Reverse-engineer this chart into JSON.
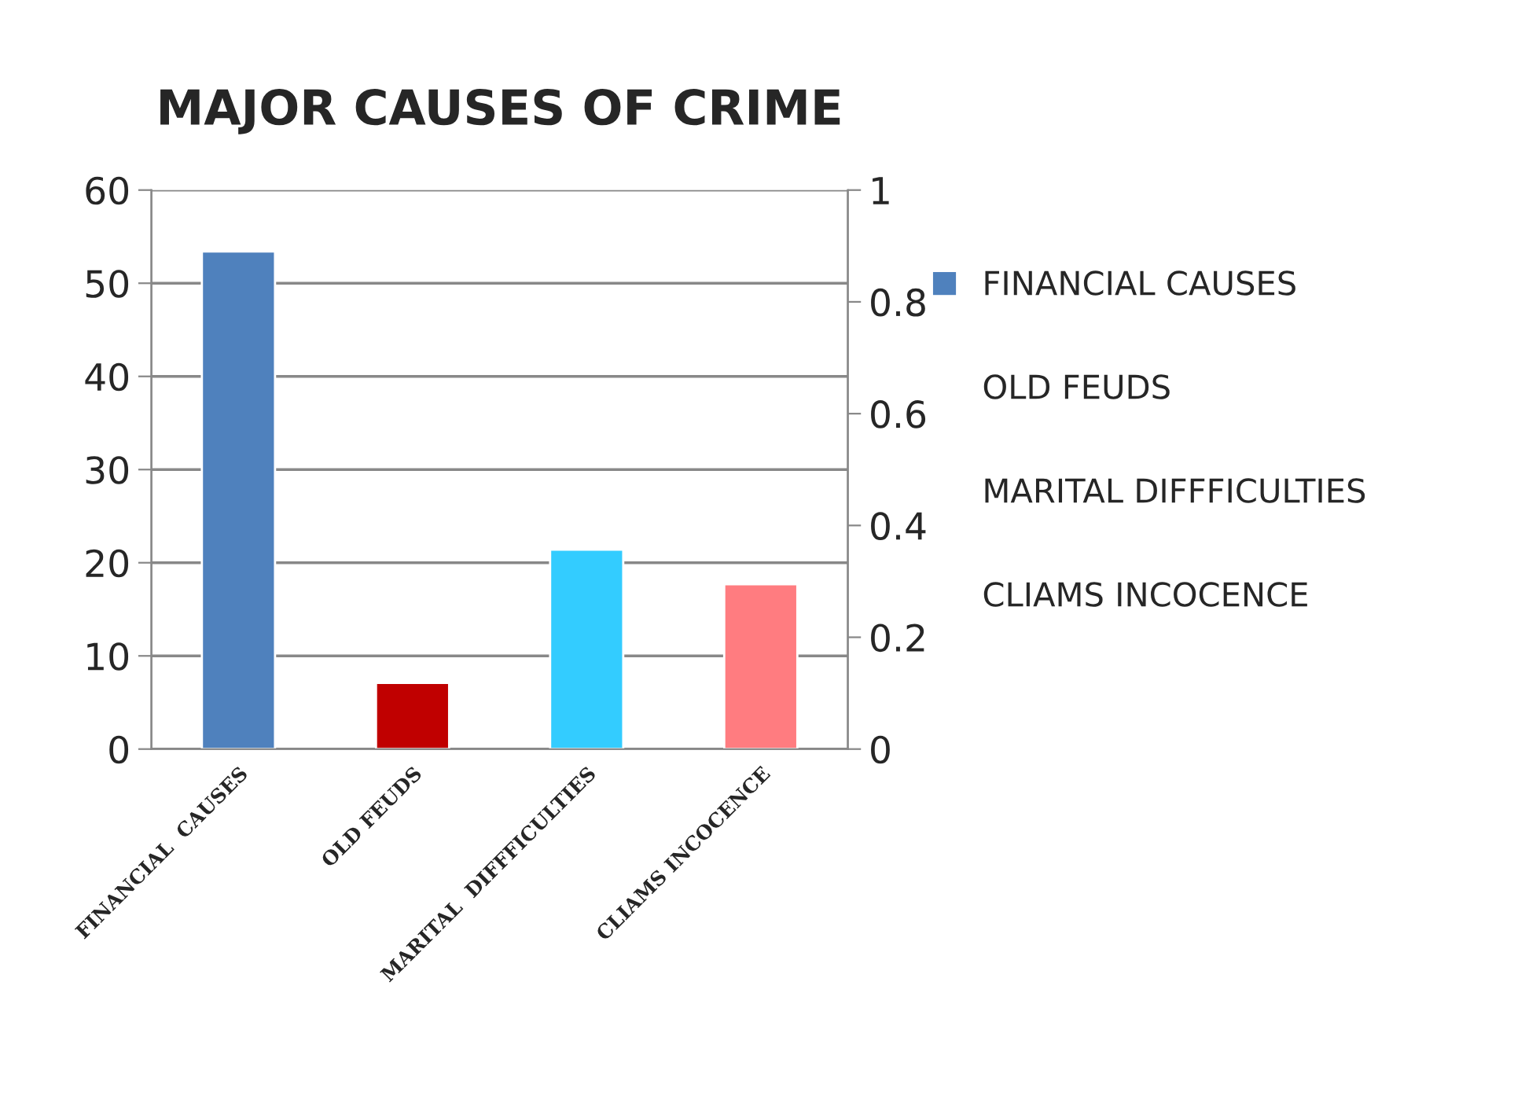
{
  "chart_data": {
    "type": "bar",
    "title": "MAJOR CAUSES OF CRIME",
    "categories": [
      "FINANCIAL  CAUSES",
      "OLD FEUDS",
      "MARITAL  DIFFFICULTIES",
      "CLIAMS INCOCENCE"
    ],
    "series": [
      {
        "name": "FINANCIAL CAUSES",
        "color": "#4f81bd",
        "colors": [
          "#4f81bd",
          "#c00000",
          "#33ccff",
          "#ff7c80"
        ],
        "values": [
          53.4,
          7.1,
          21.4,
          17.7
        ]
      },
      {
        "name": "OLD FEUDS",
        "values": [
          null,
          null,
          null,
          null
        ]
      },
      {
        "name": "MARITAL DIFFFICULTIES",
        "values": [
          null,
          null,
          null,
          null
        ]
      },
      {
        "name": "CLIAMS INCOCENCE",
        "values": [
          null,
          null,
          null,
          null
        ]
      }
    ],
    "ylim": [
      0,
      60
    ],
    "yticks": [
      0,
      10,
      20,
      30,
      40,
      50,
      60
    ],
    "y2lim": [
      0,
      1
    ],
    "y2ticks": [
      0,
      0.2,
      0.4,
      0.6,
      0.8,
      1
    ],
    "grid": "y",
    "legend": "right"
  }
}
